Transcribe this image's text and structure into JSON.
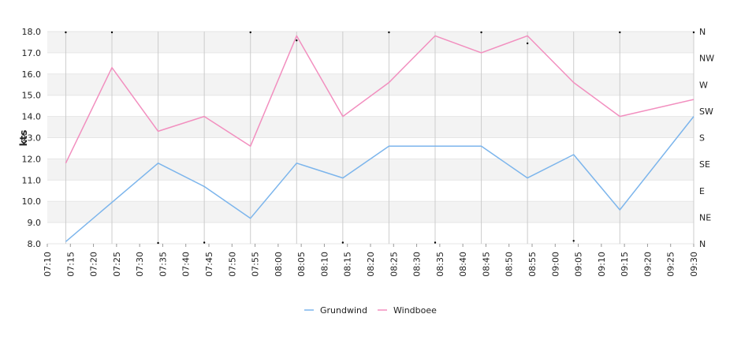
{
  "chart_data": {
    "type": "line",
    "title": "",
    "ylabel": "kts",
    "ylim": [
      8.0,
      18.0
    ],
    "yticks": [
      "8.0",
      "9.0",
      "10.0",
      "11.0",
      "12.0",
      "13.0",
      "14.0",
      "15.0",
      "16.0",
      "17.0",
      "18.0"
    ],
    "y2ticks": [
      "N",
      "NE",
      "E",
      "SE",
      "S",
      "SW",
      "W",
      "NW",
      "N"
    ],
    "xticks": [
      "07:10",
      "07:15",
      "07:20",
      "07:25",
      "07:30",
      "07:35",
      "07:40",
      "07:45",
      "07:50",
      "07:55",
      "08:00",
      "08:05",
      "08:10",
      "08:15",
      "08:20",
      "08:25",
      "08:30",
      "08:35",
      "08:40",
      "08:45",
      "08:50",
      "08:55",
      "09:00",
      "09:05",
      "09:10",
      "09:15",
      "09:20",
      "09:25",
      "09:30"
    ],
    "x": [
      "07:14",
      "07:24",
      "07:34",
      "07:44",
      "07:54",
      "08:04",
      "08:14",
      "08:24",
      "08:34",
      "08:44",
      "08:54",
      "09:04",
      "09:14",
      "09:30"
    ],
    "series": [
      {
        "name": "Grundwind",
        "color": "#7cb5ec",
        "values": [
          8.1,
          null,
          11.8,
          10.7,
          9.2,
          11.8,
          11.1,
          12.6,
          12.6,
          12.6,
          11.1,
          12.2,
          9.6,
          14.0
        ]
      },
      {
        "name": "Windboee",
        "color": "#f28fbf",
        "values": [
          11.8,
          16.3,
          13.3,
          14.0,
          12.6,
          17.8,
          14.0,
          15.6,
          17.8,
          17.0,
          17.8,
          15.6,
          14.0,
          14.8
        ]
      }
    ],
    "direction_points": [
      {
        "x": "07:14",
        "dir": 0
      },
      {
        "x": "07:24",
        "dir": 0
      },
      {
        "x": "07:34",
        "dir": 360
      },
      {
        "x": "07:44",
        "dir": 2
      },
      {
        "x": "07:54",
        "dir": 0
      },
      {
        "x": "08:04",
        "dir": 345
      },
      {
        "x": "08:14",
        "dir": 2
      },
      {
        "x": "08:24",
        "dir": 0
      },
      {
        "x": "08:34",
        "dir": 2
      },
      {
        "x": "08:44",
        "dir": 0
      },
      {
        "x": "08:54",
        "dir": 340
      },
      {
        "x": "09:04",
        "dir": 5
      },
      {
        "x": "09:14",
        "dir": 0
      },
      {
        "x": "09:30",
        "dir": 0
      }
    ],
    "grid": true,
    "legend_position": "bottom-center"
  }
}
